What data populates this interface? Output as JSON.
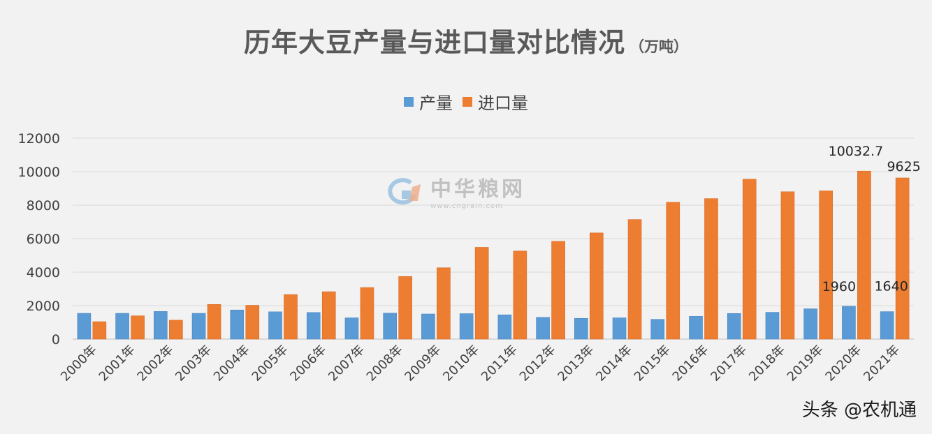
{
  "title": "历年大豆产量与进口量对比情况",
  "title_unit": "（万吨）",
  "watermark": {
    "logo_text": "中华粮网",
    "logo_url_text": "www.cngrain.com",
    "footer": "头条 @农机通"
  },
  "colors": {
    "production": "#5b9bd5",
    "import": "#ed7d31",
    "grid": "#d9d9d9",
    "axis_text": "#404040"
  },
  "chart_data": {
    "type": "bar",
    "title": "历年大豆产量与进口量对比情况",
    "ylim": [
      0,
      12000
    ],
    "yticks": [
      0,
      2000,
      4000,
      6000,
      8000,
      10000,
      12000
    ],
    "grid": true,
    "legend_position": "top-center",
    "categories": [
      "2000年",
      "2001年",
      "2002年",
      "2003年",
      "2004年",
      "2005年",
      "2006年",
      "2007年",
      "2008年",
      "2009年",
      "2010年",
      "2011年",
      "2012年",
      "2013年",
      "2014年",
      "2015年",
      "2016年",
      "2017年",
      "2018年",
      "2019年",
      "2020年",
      "2021年"
    ],
    "series": [
      {
        "name": "产量",
        "values": [
          1540,
          1540,
          1650,
          1540,
          1740,
          1630,
          1590,
          1270,
          1550,
          1500,
          1520,
          1450,
          1300,
          1240,
          1270,
          1180,
          1360,
          1530,
          1600,
          1810,
          1960,
          1640
        ]
      },
      {
        "name": "进口量",
        "values": [
          1040,
          1390,
          1130,
          2070,
          2020,
          2660,
          2830,
          3080,
          3740,
          4260,
          5480,
          5260,
          5840,
          6340,
          7140,
          8170,
          8390,
          9550,
          8800,
          8850,
          10032.7,
          9625
        ]
      }
    ],
    "data_labels": [
      {
        "series": "进口量",
        "category": "2020年",
        "text": "10032.7"
      },
      {
        "series": "进口量",
        "category": "2021年",
        "text": "9625"
      },
      {
        "series": "产量",
        "category": "2020年",
        "text": "1960"
      },
      {
        "series": "产量",
        "category": "2021年",
        "text": "1640"
      }
    ]
  }
}
